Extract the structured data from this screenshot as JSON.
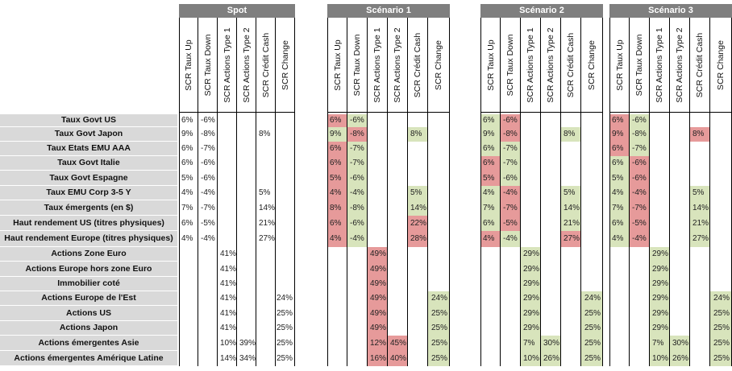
{
  "groups": [
    {
      "name": "Spot"
    },
    {
      "name": "Scénario 1"
    },
    {
      "name": "Scénario 2"
    },
    {
      "name": "Scénario 3"
    }
  ],
  "columns": [
    "SCR Taux Up",
    "SCR Taux Down",
    "SCR Actions Type 1",
    "SCR Actions Type 2",
    "SCR Crédit Cash",
    "SCR Change"
  ],
  "colors": {
    "red": "#e69a9a",
    "green": "#d8e4bc",
    "label_bg": "#d9d9d9",
    "header_bg": "#7f7f7f"
  },
  "rows": [
    {
      "label": "Taux Govt US",
      "values": [
        [
          "6%",
          "-6%",
          "",
          "",
          "",
          ""
        ],
        [
          "6%",
          "-6%",
          "",
          "",
          "",
          ""
        ],
        [
          "6%",
          "-6%",
          "",
          "",
          "",
          ""
        ],
        [
          "6%",
          "-6%",
          "",
          "",
          "",
          ""
        ]
      ],
      "colors": [
        [
          "",
          "",
          "",
          "",
          "",
          ""
        ],
        [
          "r",
          "g",
          "",
          "",
          "",
          ""
        ],
        [
          "g",
          "r",
          "",
          "",
          "",
          ""
        ],
        [
          "r",
          "g",
          "",
          "",
          "",
          ""
        ]
      ]
    },
    {
      "label": "Taux Govt Japon",
      "values": [
        [
          "9%",
          "-8%",
          "",
          "",
          "8%",
          ""
        ],
        [
          "9%",
          "-8%",
          "",
          "",
          "8%",
          ""
        ],
        [
          "9%",
          "-8%",
          "",
          "",
          "8%",
          ""
        ],
        [
          "9%",
          "-8%",
          "",
          "",
          "8%",
          ""
        ]
      ],
      "colors": [
        [
          "",
          "",
          "",
          "",
          "",
          ""
        ],
        [
          "g",
          "r",
          "",
          "",
          "g",
          ""
        ],
        [
          "g",
          "r",
          "",
          "",
          "g",
          ""
        ],
        [
          "r",
          "g",
          "",
          "",
          "r",
          ""
        ]
      ]
    },
    {
      "label": "Taux Etats EMU AAA",
      "values": [
        [
          "6%",
          "-7%",
          "",
          "",
          "",
          ""
        ],
        [
          "6%",
          "-7%",
          "",
          "",
          "",
          ""
        ],
        [
          "6%",
          "-7%",
          "",
          "",
          "",
          ""
        ],
        [
          "6%",
          "-7%",
          "",
          "",
          "",
          ""
        ]
      ],
      "colors": [
        [
          "",
          "",
          "",
          "",
          "",
          ""
        ],
        [
          "r",
          "g",
          "",
          "",
          "",
          ""
        ],
        [
          "g",
          "g",
          "",
          "",
          "",
          ""
        ],
        [
          "r",
          "g",
          "",
          "",
          "",
          ""
        ]
      ]
    },
    {
      "label": "Taux Govt Italie",
      "values": [
        [
          "6%",
          "-6%",
          "",
          "",
          "",
          ""
        ],
        [
          "6%",
          "-7%",
          "",
          "",
          "",
          ""
        ],
        [
          "6%",
          "-7%",
          "",
          "",
          "",
          ""
        ],
        [
          "6%",
          "-6%",
          "",
          "",
          "",
          ""
        ]
      ],
      "colors": [
        [
          "",
          "",
          "",
          "",
          "",
          ""
        ],
        [
          "r",
          "g",
          "",
          "",
          "",
          ""
        ],
        [
          "r",
          "g",
          "",
          "",
          "",
          ""
        ],
        [
          "g",
          "r",
          "",
          "",
          "",
          ""
        ]
      ]
    },
    {
      "label": "Taux Govt Espagne",
      "values": [
        [
          "5%",
          "-6%",
          "",
          "",
          "",
          ""
        ],
        [
          "5%",
          "-6%",
          "",
          "",
          "",
          ""
        ],
        [
          "5%",
          "-6%",
          "",
          "",
          "",
          ""
        ],
        [
          "5%",
          "-6%",
          "",
          "",
          "",
          ""
        ]
      ],
      "colors": [
        [
          "",
          "",
          "",
          "",
          "",
          ""
        ],
        [
          "r",
          "g",
          "",
          "",
          "",
          ""
        ],
        [
          "r",
          "g",
          "",
          "",
          "",
          ""
        ],
        [
          "g",
          "r",
          "",
          "",
          "",
          ""
        ]
      ]
    },
    {
      "label": "Taux EMU Corp 3-5 Y",
      "values": [
        [
          "4%",
          "-4%",
          "",
          "",
          "5%",
          ""
        ],
        [
          "4%",
          "-4%",
          "",
          "",
          "5%",
          ""
        ],
        [
          "4%",
          "-4%",
          "",
          "",
          "5%",
          ""
        ],
        [
          "4%",
          "-4%",
          "",
          "",
          "5%",
          ""
        ]
      ],
      "colors": [
        [
          "",
          "",
          "",
          "",
          "",
          ""
        ],
        [
          "r",
          "g",
          "",
          "",
          "g",
          ""
        ],
        [
          "g",
          "r",
          "",
          "",
          "g",
          ""
        ],
        [
          "g",
          "r",
          "",
          "",
          "g",
          ""
        ]
      ]
    },
    {
      "label": "Taux émergents (en $)",
      "values": [
        [
          "7%",
          "-7%",
          "",
          "",
          "14%",
          ""
        ],
        [
          "8%",
          "-8%",
          "",
          "",
          "14%",
          ""
        ],
        [
          "7%",
          "-7%",
          "",
          "",
          "14%",
          ""
        ],
        [
          "7%",
          "-7%",
          "",
          "",
          "14%",
          ""
        ]
      ],
      "colors": [
        [
          "",
          "",
          "",
          "",
          "",
          ""
        ],
        [
          "r",
          "g",
          "",
          "",
          "g",
          ""
        ],
        [
          "g",
          "r",
          "",
          "",
          "g",
          ""
        ],
        [
          "g",
          "r",
          "",
          "",
          "g",
          ""
        ]
      ]
    },
    {
      "label": "Haut rendement US (titres physiques)",
      "values": [
        [
          "6%",
          "-5%",
          "",
          "",
          "21%",
          ""
        ],
        [
          "6%",
          "-6%",
          "",
          "",
          "22%",
          ""
        ],
        [
          "6%",
          "-5%",
          "",
          "",
          "21%",
          ""
        ],
        [
          "6%",
          "-5%",
          "",
          "",
          "21%",
          ""
        ]
      ],
      "colors": [
        [
          "",
          "",
          "",
          "",
          "",
          ""
        ],
        [
          "r",
          "g",
          "",
          "",
          "r",
          ""
        ],
        [
          "g",
          "r",
          "",
          "",
          "g",
          ""
        ],
        [
          "g",
          "r",
          "",
          "",
          "g",
          ""
        ]
      ]
    },
    {
      "label": "Haut rendement Europe (titres physiques)",
      "values": [
        [
          "4%",
          "-4%",
          "",
          "",
          "27%",
          ""
        ],
        [
          "4%",
          "-4%",
          "",
          "",
          "28%",
          ""
        ],
        [
          "4%",
          "-4%",
          "",
          "",
          "27%",
          ""
        ],
        [
          "4%",
          "-4%",
          "",
          "",
          "27%",
          ""
        ]
      ],
      "colors": [
        [
          "",
          "",
          "",
          "",
          "",
          ""
        ],
        [
          "r",
          "g",
          "",
          "",
          "r",
          ""
        ],
        [
          "r",
          "g",
          "",
          "",
          "r",
          ""
        ],
        [
          "g",
          "r",
          "",
          "",
          "g",
          ""
        ]
      ]
    },
    {
      "label": "Actions Zone Euro",
      "values": [
        [
          "",
          "",
          "41%",
          "",
          "",
          ""
        ],
        [
          "",
          "",
          "49%",
          "",
          "",
          ""
        ],
        [
          "",
          "",
          "29%",
          "",
          "",
          ""
        ],
        [
          "",
          "",
          "29%",
          "",
          "",
          ""
        ]
      ],
      "colors": [
        [
          "",
          "",
          "",
          "",
          "",
          ""
        ],
        [
          "",
          "",
          "r",
          "",
          "",
          ""
        ],
        [
          "",
          "",
          "g",
          "",
          "",
          ""
        ],
        [
          "",
          "",
          "g",
          "",
          "",
          ""
        ]
      ]
    },
    {
      "label": "Actions Europe hors zone Euro",
      "values": [
        [
          "",
          "",
          "41%",
          "",
          "",
          ""
        ],
        [
          "",
          "",
          "49%",
          "",
          "",
          ""
        ],
        [
          "",
          "",
          "29%",
          "",
          "",
          ""
        ],
        [
          "",
          "",
          "29%",
          "",
          "",
          ""
        ]
      ],
      "colors": [
        [
          "",
          "",
          "",
          "",
          "",
          ""
        ],
        [
          "",
          "",
          "r",
          "",
          "",
          ""
        ],
        [
          "",
          "",
          "g",
          "",
          "",
          ""
        ],
        [
          "",
          "",
          "g",
          "",
          "",
          ""
        ]
      ]
    },
    {
      "label": "Immobilier coté",
      "values": [
        [
          "",
          "",
          "41%",
          "",
          "",
          ""
        ],
        [
          "",
          "",
          "49%",
          "",
          "",
          ""
        ],
        [
          "",
          "",
          "29%",
          "",
          "",
          ""
        ],
        [
          "",
          "",
          "29%",
          "",
          "",
          ""
        ]
      ],
      "colors": [
        [
          "",
          "",
          "",
          "",
          "",
          ""
        ],
        [
          "",
          "",
          "r",
          "",
          "",
          ""
        ],
        [
          "",
          "",
          "g",
          "",
          "",
          ""
        ],
        [
          "",
          "",
          "g",
          "",
          "",
          ""
        ]
      ]
    },
    {
      "label": "Actions Europe de l'Est",
      "values": [
        [
          "",
          "",
          "41%",
          "",
          "",
          "24%"
        ],
        [
          "",
          "",
          "49%",
          "",
          "",
          "24%"
        ],
        [
          "",
          "",
          "29%",
          "",
          "",
          "24%"
        ],
        [
          "",
          "",
          "29%",
          "",
          "",
          "24%"
        ]
      ],
      "colors": [
        [
          "",
          "",
          "",
          "",
          "",
          ""
        ],
        [
          "",
          "",
          "r",
          "",
          "",
          "g"
        ],
        [
          "",
          "",
          "g",
          "",
          "",
          "g"
        ],
        [
          "",
          "",
          "g",
          "",
          "",
          "g"
        ]
      ]
    },
    {
      "label": "Actions US",
      "values": [
        [
          "",
          "",
          "41%",
          "",
          "",
          "25%"
        ],
        [
          "",
          "",
          "49%",
          "",
          "",
          "25%"
        ],
        [
          "",
          "",
          "29%",
          "",
          "",
          "25%"
        ],
        [
          "",
          "",
          "29%",
          "",
          "",
          "25%"
        ]
      ],
      "colors": [
        [
          "",
          "",
          "",
          "",
          "",
          ""
        ],
        [
          "",
          "",
          "r",
          "",
          "",
          "g"
        ],
        [
          "",
          "",
          "g",
          "",
          "",
          "g"
        ],
        [
          "",
          "",
          "g",
          "",
          "",
          "g"
        ]
      ]
    },
    {
      "label": "Actions Japon",
      "values": [
        [
          "",
          "",
          "41%",
          "",
          "",
          "25%"
        ],
        [
          "",
          "",
          "49%",
          "",
          "",
          "25%"
        ],
        [
          "",
          "",
          "29%",
          "",
          "",
          "25%"
        ],
        [
          "",
          "",
          "29%",
          "",
          "",
          "25%"
        ]
      ],
      "colors": [
        [
          "",
          "",
          "",
          "",
          "",
          ""
        ],
        [
          "",
          "",
          "r",
          "",
          "",
          "g"
        ],
        [
          "",
          "",
          "g",
          "",
          "",
          "g"
        ],
        [
          "",
          "",
          "g",
          "",
          "",
          "g"
        ]
      ]
    },
    {
      "label": "Actions émergentes Asie",
      "values": [
        [
          "",
          "",
          "10%",
          "39%",
          "",
          "25%"
        ],
        [
          "",
          "",
          "12%",
          "45%",
          "",
          "25%"
        ],
        [
          "",
          "",
          "7%",
          "30%",
          "",
          "25%"
        ],
        [
          "",
          "",
          "7%",
          "30%",
          "",
          "25%"
        ]
      ],
      "colors": [
        [
          "",
          "",
          "",
          "",
          "",
          ""
        ],
        [
          "",
          "",
          "r",
          "r",
          "",
          "g"
        ],
        [
          "",
          "",
          "g",
          "g",
          "",
          "g"
        ],
        [
          "",
          "",
          "g",
          "g",
          "",
          "g"
        ]
      ]
    },
    {
      "label": "Actions émergentes Amérique Latine",
      "values": [
        [
          "",
          "",
          "14%",
          "34%",
          "",
          "25%"
        ],
        [
          "",
          "",
          "16%",
          "40%",
          "",
          "25%"
        ],
        [
          "",
          "",
          "10%",
          "26%",
          "",
          "25%"
        ],
        [
          "",
          "",
          "10%",
          "26%",
          "",
          "25%"
        ]
      ],
      "colors": [
        [
          "",
          "",
          "",
          "",
          "",
          ""
        ],
        [
          "",
          "",
          "r",
          "r",
          "",
          "g"
        ],
        [
          "",
          "",
          "g",
          "g",
          "",
          "g"
        ],
        [
          "",
          "",
          "g",
          "g",
          "",
          "g"
        ]
      ]
    }
  ]
}
